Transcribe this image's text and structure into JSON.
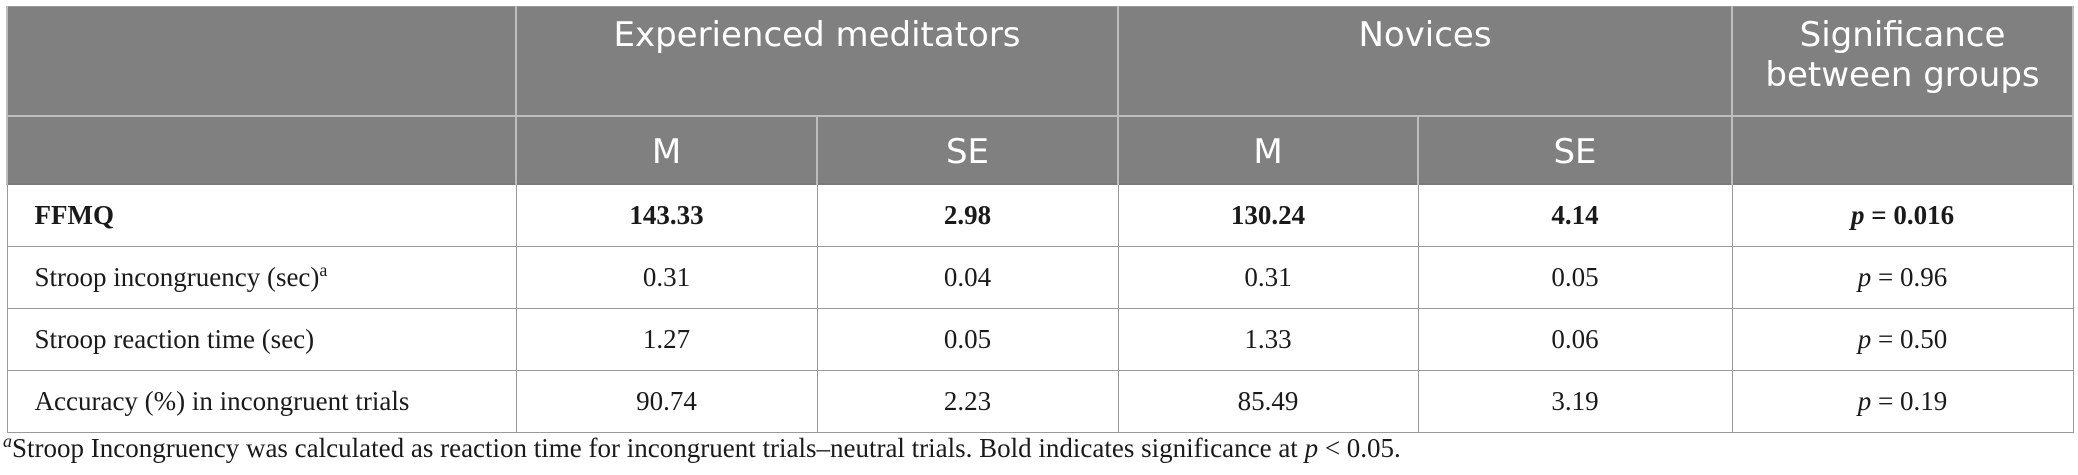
{
  "header": {
    "group1": "Experienced meditators",
    "group2": "Novices",
    "group3": "Significance between groups",
    "m1": "M",
    "se1": "SE",
    "m2": "M",
    "se2": "SE"
  },
  "rows": [
    {
      "label": "FFMQ",
      "sup": "",
      "m1": "143.33",
      "se1": "2.98",
      "m2": "130.24",
      "se2": "4.14",
      "p_label": "p",
      "p_value": " = 0.016",
      "bold": true
    },
    {
      "label": "Stroop incongruency (sec)",
      "sup": "a",
      "m1": "0.31",
      "se1": "0.04",
      "m2": "0.31",
      "se2": "0.05",
      "p_label": "p",
      "p_value": " = 0.96",
      "bold": false
    },
    {
      "label": "Stroop reaction time (sec)",
      "sup": "",
      "m1": "1.27",
      "se1": "0.05",
      "m2": "1.33",
      "se2": "0.06",
      "p_label": "p",
      "p_value": " = 0.50",
      "bold": false
    },
    {
      "label": "Accuracy (%) in incongruent trials",
      "sup": "",
      "m1": "90.74",
      "se1": "2.23",
      "m2": "85.49",
      "se2": "3.19",
      "p_label": "p",
      "p_value": " = 0.19",
      "bold": false
    }
  ],
  "footnote": {
    "marker": "a",
    "text_before": "Stroop Incongruency was calculated as reaction time for incongruent trials–neutral trials. Bold indicates significance at ",
    "p_label": "p",
    "text_after": " < 0.05."
  }
}
